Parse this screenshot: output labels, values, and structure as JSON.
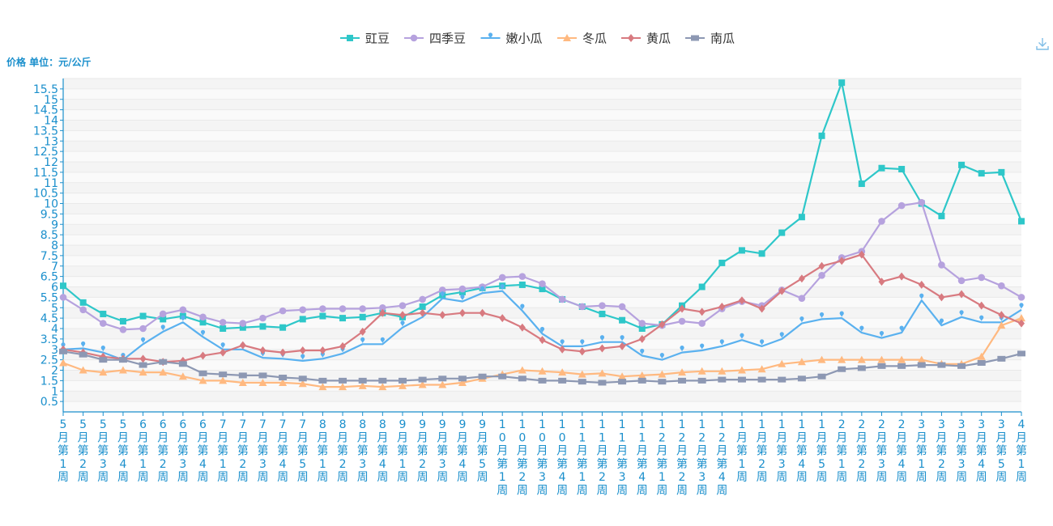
{
  "chart_data": {
    "type": "line",
    "title": "",
    "ylabel": "价格 单位：元/公斤",
    "xlabel": "",
    "ylim": [
      0,
      16
    ],
    "yticks": [
      0.5,
      1,
      1.5,
      2,
      2.5,
      3,
      3.5,
      4,
      4.5,
      5,
      5.5,
      6,
      6.5,
      7,
      7.5,
      8,
      8.5,
      9,
      9.5,
      10,
      10.5,
      11,
      11.5,
      12,
      12.5,
      13,
      13.5,
      14,
      14.5,
      15,
      15.5
    ],
    "legend_position": "top-center",
    "grid": true,
    "categories": [
      "5月第1周",
      "5月第2周",
      "5月第3周",
      "5月第4周",
      "6月第1周",
      "6月第2周",
      "6月第3周",
      "6月第4周",
      "7月第1周",
      "7月第2周",
      "7月第3周",
      "7月第4周",
      "7月第5周",
      "8月第1周",
      "8月第2周",
      "8月第3周",
      "8月第4周",
      "9月第1周",
      "9月第2周",
      "9月第3周",
      "9月第4周",
      "9月第5周",
      "10月第1周",
      "10月第2周",
      "10月第3周",
      "10月第4周",
      "11月第1周",
      "11月第2周",
      "11月第3周",
      "11月第4周",
      "12月第1周",
      "12月第2周",
      "12月第3周",
      "12月第4周",
      "1月第1周",
      "1月第2周",
      "1月第3周",
      "1月第4周",
      "1月第5周",
      "2月第1周",
      "2月第2周",
      "2月第3周",
      "2月第4周",
      "3月第1周",
      "3月第2周",
      "3月第3周",
      "3月第4周",
      "3月第5周",
      "4月第1周"
    ],
    "series": [
      {
        "name": "豇豆",
        "color": "#2ec7c9",
        "marker": "square",
        "values": [
          6.05,
          5.25,
          4.7,
          4.35,
          4.6,
          4.45,
          4.6,
          4.3,
          4.0,
          4.05,
          4.1,
          4.05,
          4.45,
          4.6,
          4.5,
          4.55,
          4.75,
          4.55,
          5.05,
          5.6,
          5.75,
          5.95,
          6.05,
          6.1,
          5.9,
          5.4,
          5.05,
          4.7,
          4.4,
          4.0,
          4.2,
          5.1,
          6.0,
          7.15,
          7.75,
          7.6,
          8.6,
          9.35,
          13.25,
          15.8,
          10.95,
          11.7,
          11.65,
          10.0,
          9.4,
          11.85,
          11.45,
          11.5,
          9.15
        ]
      },
      {
        "name": "四季豆",
        "color": "#b6a2de",
        "marker": "circle",
        "values": [
          5.5,
          4.9,
          4.25,
          3.95,
          4.0,
          4.7,
          4.9,
          4.55,
          4.3,
          4.25,
          4.5,
          4.85,
          4.9,
          4.95,
          4.95,
          4.95,
          5.0,
          5.1,
          5.4,
          5.85,
          5.9,
          6.0,
          6.45,
          6.5,
          6.15,
          5.4,
          5.05,
          5.1,
          5.05,
          4.25,
          4.15,
          4.35,
          4.25,
          4.95,
          5.3,
          5.1,
          5.85,
          5.45,
          6.55,
          7.4,
          7.7,
          9.15,
          9.9,
          10.05,
          7.05,
          6.3,
          6.45,
          6.05,
          5.5
        ]
      },
      {
        "name": "嫩小瓜",
        "color": "#5ab1ef",
        "marker": "pin",
        "values": [
          3.0,
          3.05,
          2.85,
          2.5,
          3.25,
          3.85,
          4.3,
          3.6,
          3.0,
          3.0,
          2.6,
          2.55,
          2.45,
          2.55,
          2.8,
          3.25,
          3.25,
          4.05,
          4.55,
          5.45,
          5.3,
          5.7,
          5.8,
          4.85,
          3.75,
          3.15,
          3.15,
          3.35,
          3.35,
          2.7,
          2.5,
          2.85,
          2.95,
          3.15,
          3.45,
          3.15,
          3.5,
          4.25,
          4.45,
          4.5,
          3.8,
          3.55,
          3.8,
          5.35,
          4.15,
          4.55,
          4.3,
          4.3,
          4.9
        ]
      },
      {
        "name": "冬瓜",
        "color": "#ffb980",
        "marker": "triangle",
        "values": [
          2.35,
          2.0,
          1.9,
          2.0,
          1.9,
          1.9,
          1.7,
          1.5,
          1.5,
          1.4,
          1.4,
          1.4,
          1.35,
          1.2,
          1.2,
          1.25,
          1.2,
          1.25,
          1.3,
          1.3,
          1.4,
          1.6,
          1.8,
          2.0,
          1.95,
          1.9,
          1.8,
          1.85,
          1.7,
          1.75,
          1.8,
          1.9,
          1.95,
          1.95,
          2.0,
          2.05,
          2.3,
          2.4,
          2.5,
          2.5,
          2.5,
          2.5,
          2.5,
          2.5,
          2.3,
          2.3,
          2.65,
          4.15,
          4.5
        ]
      },
      {
        "name": "黄瓜",
        "color": "#d87a80",
        "marker": "diamond",
        "values": [
          3.0,
          2.85,
          2.65,
          2.55,
          2.55,
          2.4,
          2.45,
          2.7,
          2.85,
          3.2,
          2.95,
          2.85,
          2.95,
          2.95,
          3.15,
          3.85,
          4.75,
          4.65,
          4.75,
          4.65,
          4.75,
          4.75,
          4.5,
          4.05,
          3.45,
          3.0,
          2.9,
          3.05,
          3.15,
          3.5,
          4.2,
          4.95,
          4.8,
          5.05,
          5.35,
          4.95,
          5.8,
          6.4,
          7.0,
          7.25,
          7.55,
          6.25,
          6.5,
          6.1,
          5.5,
          5.65,
          5.1,
          4.65,
          4.25
        ]
      },
      {
        "name": "南瓜",
        "color": "#8d98b3",
        "marker": "rect",
        "values": [
          2.9,
          2.75,
          2.5,
          2.5,
          2.25,
          2.4,
          2.3,
          1.85,
          1.8,
          1.75,
          1.75,
          1.65,
          1.6,
          1.5,
          1.5,
          1.5,
          1.5,
          1.5,
          1.55,
          1.6,
          1.6,
          1.7,
          1.7,
          1.6,
          1.5,
          1.5,
          1.45,
          1.4,
          1.45,
          1.5,
          1.45,
          1.5,
          1.5,
          1.55,
          1.55,
          1.55,
          1.55,
          1.6,
          1.7,
          2.05,
          2.1,
          2.2,
          2.2,
          2.25,
          2.25,
          2.2,
          2.35,
          2.55,
          2.8
        ]
      }
    ]
  },
  "toolbar": {
    "download_icon": "download-icon"
  }
}
